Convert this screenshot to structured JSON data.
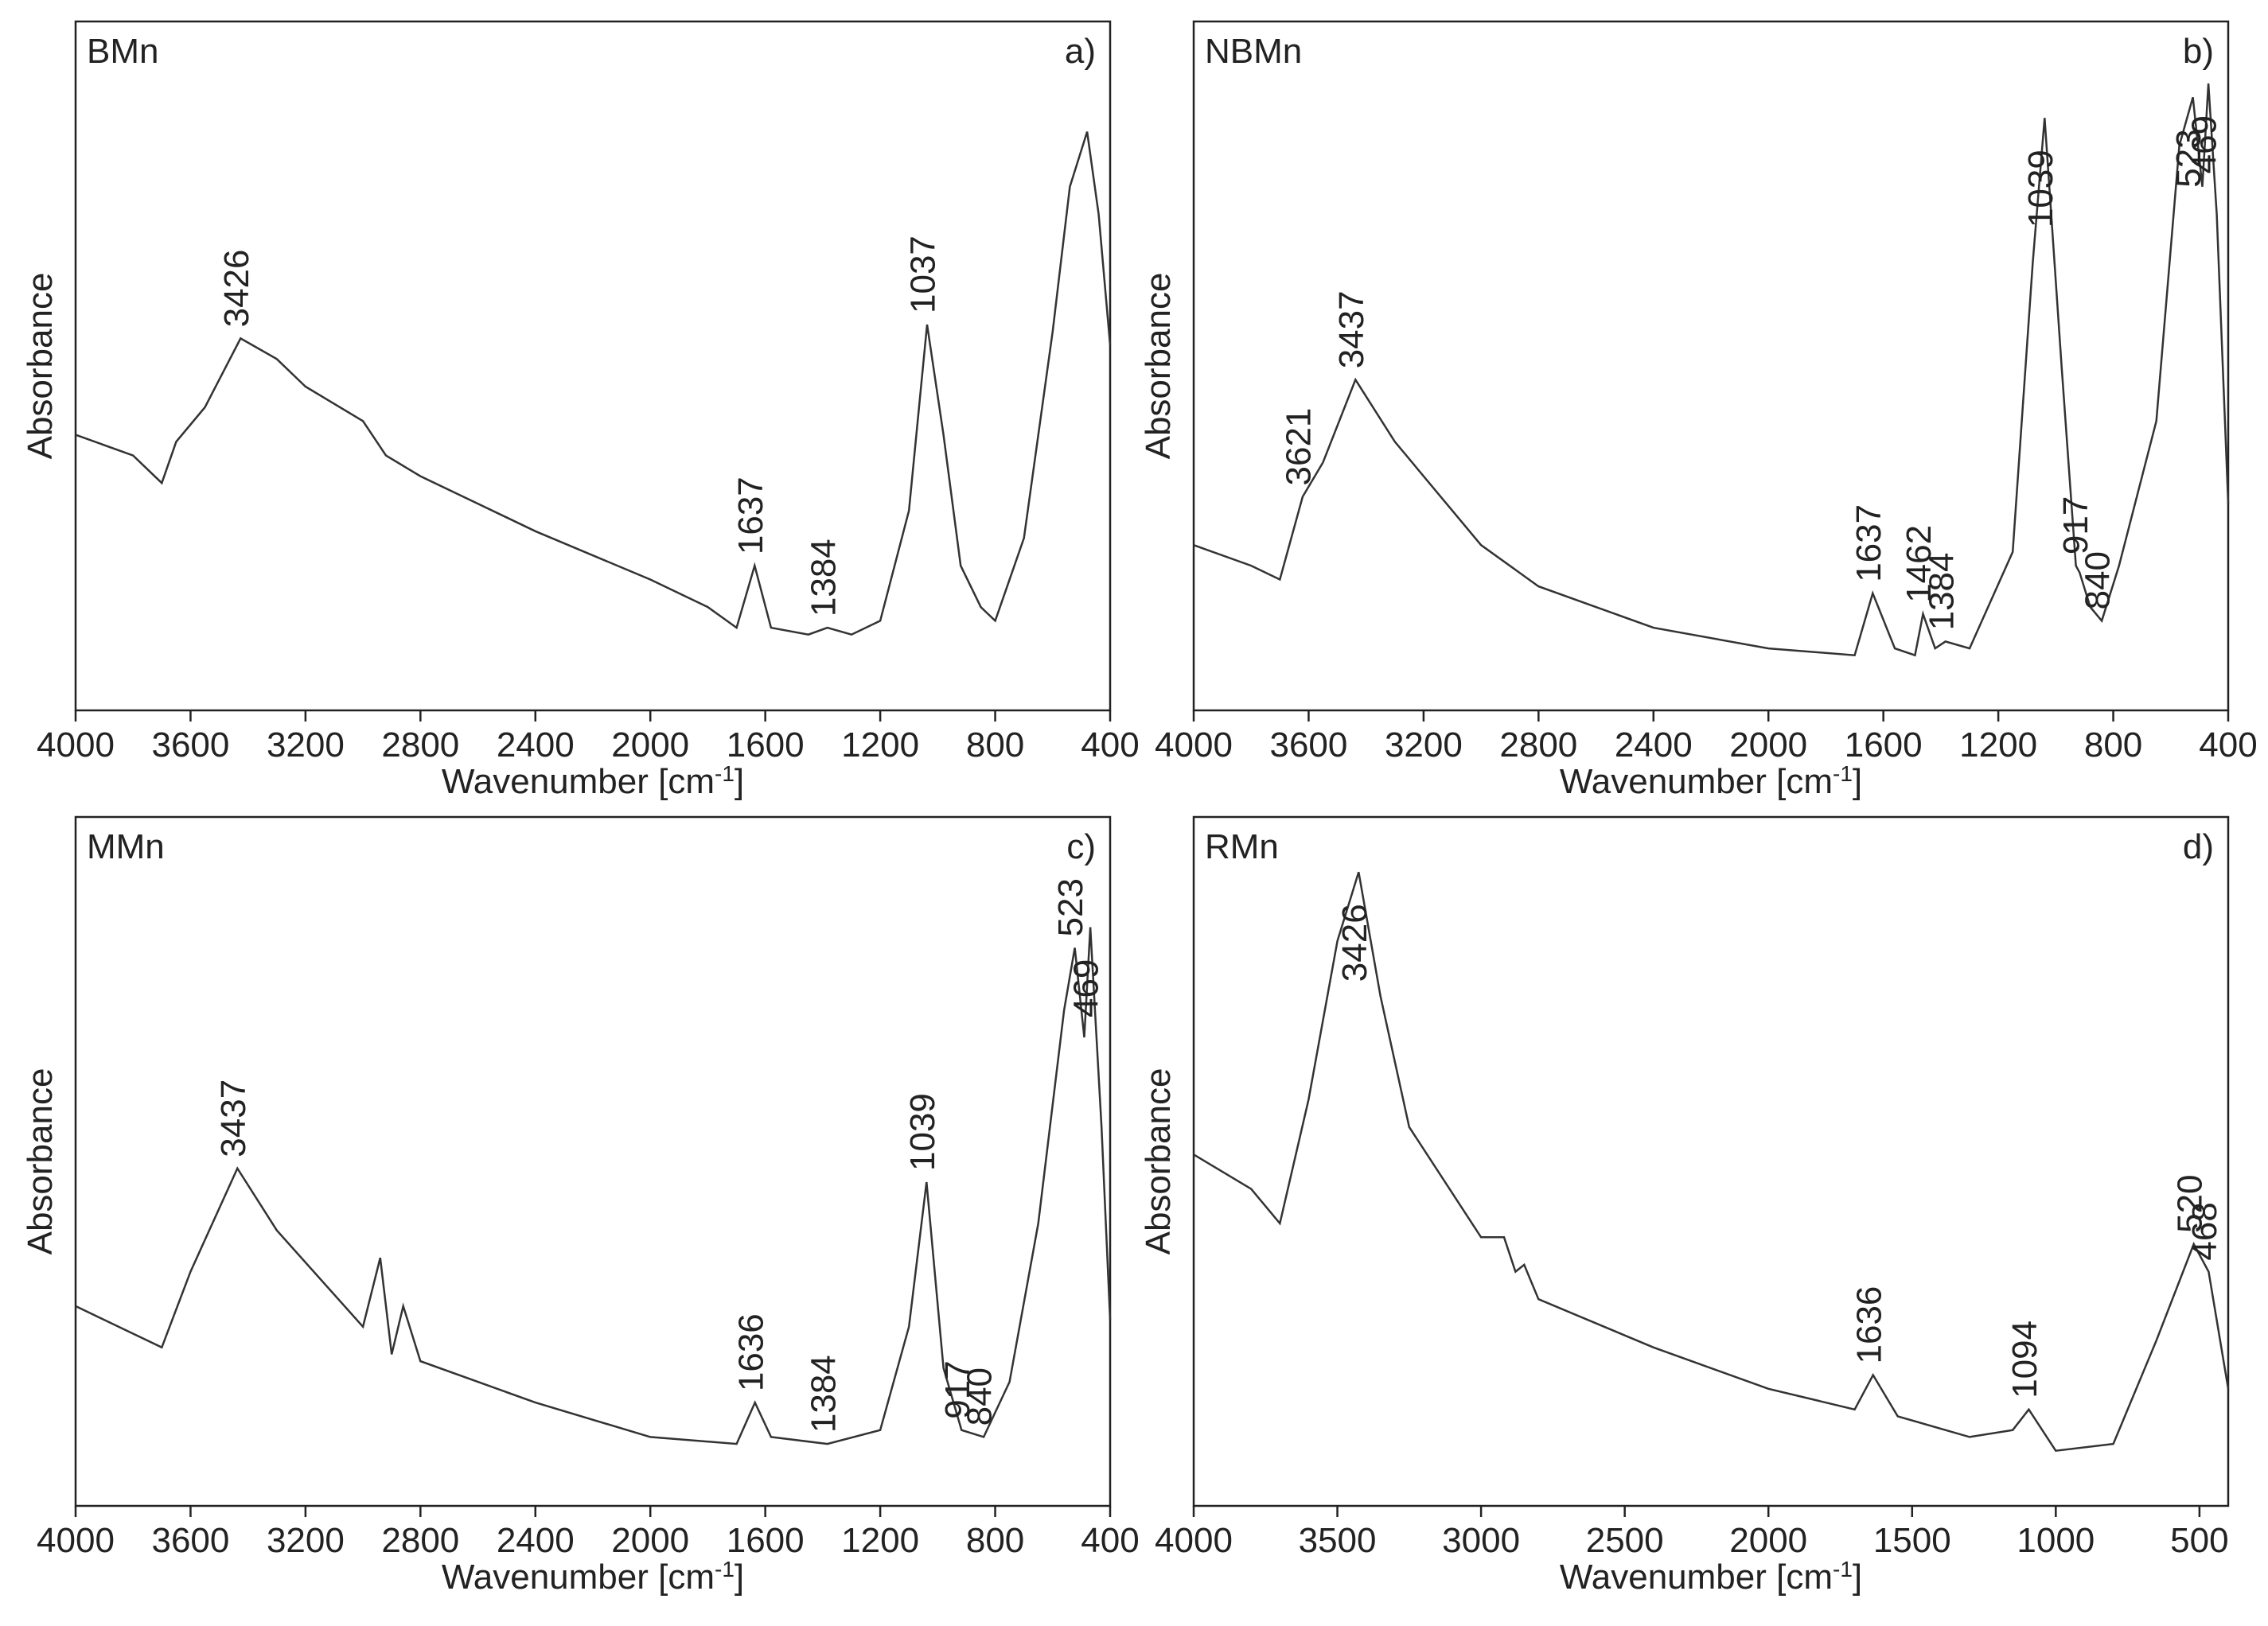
{
  "chart_data": [
    {
      "type": "line",
      "panel_label": "a)",
      "xlabel": [
        "Wavenumber [cm",
        "-1",
        "]"
      ],
      "ylabel": "Absorbance",
      "xlim": [
        4000,
        400
      ],
      "ylim": [
        0,
        100
      ],
      "xticks": [
        4000,
        3600,
        3200,
        2800,
        2400,
        2000,
        1600,
        1200,
        800,
        400
      ],
      "series": [
        {
          "name": "BMn",
          "color": "#333333",
          "x": [
            4000,
            3800,
            3700,
            3650,
            3550,
            3426,
            3300,
            3200,
            3000,
            2920,
            2800,
            2400,
            2000,
            1800,
            1700,
            1637,
            1580,
            1450,
            1384,
            1300,
            1200,
            1100,
            1037,
            980,
            920,
            850,
            800,
            700,
            600,
            540,
            480,
            440,
            400
          ],
          "values": [
            40,
            37,
            33,
            39,
            44,
            54,
            51,
            47,
            42,
            37,
            34,
            26,
            19,
            15,
            12,
            21,
            12,
            11,
            12,
            11,
            13,
            29,
            56,
            40,
            21,
            15,
            13,
            25,
            55,
            76,
            84,
            72,
            53
          ]
        }
      ],
      "annotations": [
        {
          "text": "3426",
          "x": 3426
        },
        {
          "text": "1637",
          "x": 1637
        },
        {
          "text": "1384",
          "x": 1384
        },
        {
          "text": "1037",
          "x": 1037
        }
      ]
    },
    {
      "type": "line",
      "panel_label": "b)",
      "xlabel": [
        "Wavenumber [cm",
        "-1",
        "]"
      ],
      "ylabel": "Absorbance",
      "xlim": [
        4000,
        400
      ],
      "ylim": [
        0,
        100
      ],
      "xticks": [
        4000,
        3600,
        3200,
        2800,
        2400,
        2000,
        1600,
        1200,
        800,
        400
      ],
      "series": [
        {
          "name": "NBMn",
          "color": "#333333",
          "x": [
            4000,
            3800,
            3700,
            3621,
            3550,
            3437,
            3300,
            3000,
            2800,
            2400,
            2000,
            1700,
            1637,
            1560,
            1490,
            1462,
            1420,
            1384,
            1300,
            1150,
            1080,
            1039,
            980,
            930,
            917,
            880,
            840,
            780,
            650,
            570,
            523,
            490,
            469,
            440,
            400
          ],
          "values": [
            24,
            21,
            19,
            31,
            36,
            48,
            39,
            24,
            18,
            12,
            9,
            8,
            17,
            9,
            8,
            14,
            9,
            10,
            9,
            23,
            65,
            86,
            50,
            21,
            20,
            15,
            13,
            21,
            42,
            82,
            89,
            76,
            91,
            72,
            30
          ]
        }
      ],
      "annotations": [
        {
          "text": "3621",
          "x": 3621
        },
        {
          "text": "3437",
          "x": 3437
        },
        {
          "text": "1637",
          "x": 1637
        },
        {
          "text": "1462",
          "x": 1462
        },
        {
          "text": "1384",
          "x": 1384
        },
        {
          "text": "1039",
          "x": 1039
        },
        {
          "text": "917",
          "x": 917
        },
        {
          "text": "840",
          "x": 840
        },
        {
          "text": "523",
          "x": 523
        },
        {
          "text": "469",
          "x": 469
        }
      ]
    },
    {
      "type": "line",
      "panel_label": "c)",
      "xlabel": [
        "Wavenumber [cm",
        "-1",
        "]"
      ],
      "ylabel": "Absorbance",
      "xlim": [
        4000,
        400
      ],
      "ylim": [
        0,
        100
      ],
      "xticks": [
        4000,
        3600,
        3200,
        2800,
        2400,
        2000,
        1600,
        1200,
        800,
        400
      ],
      "series": [
        {
          "name": "MMn",
          "color": "#333333",
          "x": [
            4000,
            3800,
            3700,
            3600,
            3437,
            3300,
            3000,
            2940,
            2900,
            2860,
            2800,
            2400,
            2000,
            1700,
            1636,
            1580,
            1384,
            1200,
            1100,
            1039,
            980,
            917,
            840,
            750,
            650,
            560,
            523,
            490,
            469,
            430,
            400
          ],
          "values": [
            29,
            25,
            23,
            34,
            49,
            40,
            26,
            36,
            22,
            29,
            21,
            15,
            10,
            9,
            15,
            10,
            9,
            11,
            26,
            47,
            20,
            11,
            10,
            18,
            41,
            72,
            81,
            68,
            84,
            55,
            27
          ]
        }
      ],
      "annotations": [
        {
          "text": "3437",
          "x": 3437
        },
        {
          "text": "1636",
          "x": 1636
        },
        {
          "text": "1384",
          "x": 1384
        },
        {
          "text": "1039",
          "x": 1039
        },
        {
          "text": "917",
          "x": 917
        },
        {
          "text": "840",
          "x": 840
        },
        {
          "text": "523",
          "x": 523
        },
        {
          "text": "469",
          "x": 469
        }
      ]
    },
    {
      "type": "line",
      "panel_label": "d)",
      "xlabel": [
        "Wavenumber [cm",
        "-1",
        "]"
      ],
      "ylabel": "Absorbance",
      "xlim": [
        4000,
        400
      ],
      "ylim": [
        0,
        100
      ],
      "xticks": [
        4000,
        3500,
        3000,
        2500,
        2000,
        1500,
        1000,
        500
      ],
      "series": [
        {
          "name": "RMn",
          "color": "#333333",
          "x": [
            4000,
            3800,
            3700,
            3600,
            3500,
            3426,
            3350,
            3250,
            3000,
            2920,
            2880,
            2850,
            2800,
            2400,
            2000,
            1700,
            1636,
            1550,
            1300,
            1150,
            1094,
            1000,
            800,
            650,
            520,
            468,
            400
          ],
          "values": [
            51,
            46,
            41,
            59,
            82,
            92,
            74,
            55,
            39,
            39,
            34,
            35,
            30,
            23,
            17,
            14,
            19,
            13,
            10,
            11,
            14,
            8,
            9,
            24,
            38,
            34,
            17
          ]
        }
      ],
      "annotations": [
        {
          "text": "3426",
          "x": 3426
        },
        {
          "text": "1636",
          "x": 1636
        },
        {
          "text": "1094",
          "x": 1094
        },
        {
          "text": "520",
          "x": 520
        },
        {
          "text": "468",
          "x": 468
        }
      ]
    }
  ]
}
